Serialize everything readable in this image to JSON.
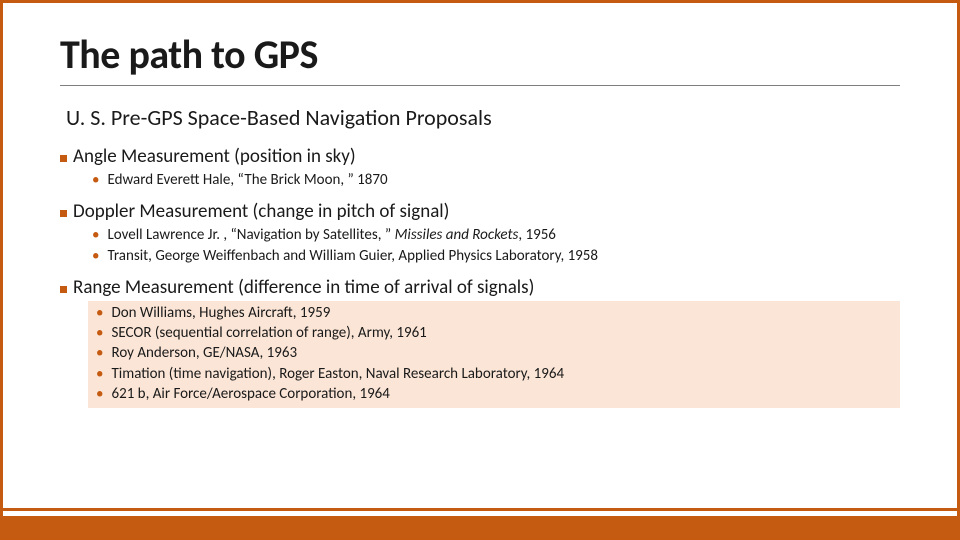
{
  "colors": {
    "accent": "#c55a11",
    "text": "#1a1a1a",
    "highlight_bg": "#fbe5d6",
    "rule": "#7f7f7f",
    "background": "#ffffff"
  },
  "title": "The path to GPS",
  "subtitle": "U. S. Pre-GPS Space-Based Navigation Proposals",
  "sections": [
    {
      "heading": "Angle Measurement (position in sky)",
      "highlighted": false,
      "items": [
        {
          "text": "Edward Everett Hale, “The Brick Moon, ” 1870"
        }
      ]
    },
    {
      "heading": "Doppler Measurement (change in pitch of signal)",
      "highlighted": false,
      "items": [
        {
          "text_pre": "Lovell Lawrence Jr. , “Navigation by Satellites, ” ",
          "italic": "Missiles and Rockets",
          "text_post": ", 1956"
        },
        {
          "text": "Transit, George Weiffenbach and William Guier, Applied Physics Laboratory, 1958"
        }
      ]
    },
    {
      "heading": "Range Measurement (difference in time of arrival of signals)",
      "highlighted": true,
      "items": [
        {
          "text": "Don Williams, Hughes Aircraft, 1959"
        },
        {
          "text": "SECOR (sequential correlation of range), Army, 1961"
        },
        {
          "text": "Roy Anderson, GE/NASA, 1963"
        },
        {
          "text": "Timation (time navigation), Roger Easton, Naval Research Laboratory, 1964"
        },
        {
          "text": "621 b, Air Force/Aerospace Corporation, 1964"
        }
      ]
    }
  ]
}
